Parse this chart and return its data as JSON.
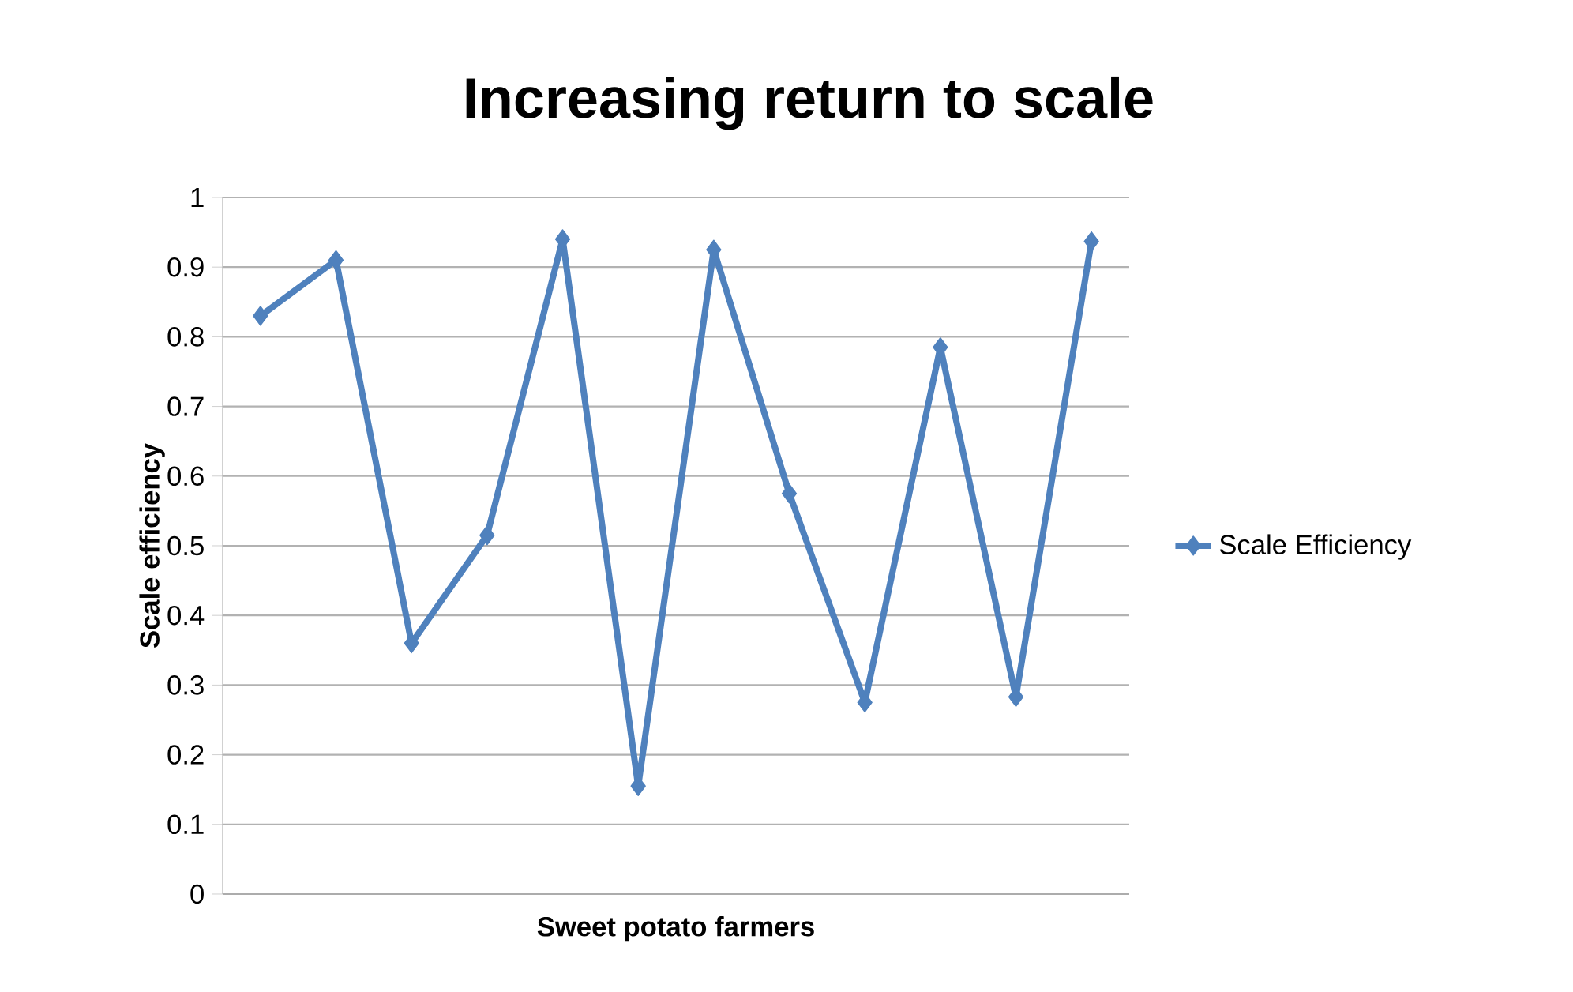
{
  "chart_data": {
    "type": "line",
    "title": "Increasing return to scale",
    "xlabel": "Sweet potato farmers",
    "ylabel": "Scale efficiency",
    "categories": [
      null,
      null,
      null,
      null,
      null,
      null,
      null,
      null,
      null,
      null,
      null,
      null
    ],
    "series": [
      {
        "name": "Scale Efficiency",
        "color": "#4f81bd",
        "values": [
          0.83,
          0.91,
          0.36,
          0.515,
          0.94,
          0.155,
          0.925,
          0.575,
          0.275,
          0.785,
          0.283,
          0.937
        ]
      }
    ],
    "ylim": [
      0,
      1
    ],
    "yticks": [
      0,
      0.1,
      0.2,
      0.3,
      0.4,
      0.5,
      0.6,
      0.7,
      0.8,
      0.9,
      1
    ],
    "grid": "y",
    "legend": "right",
    "marker": "diamond",
    "line_style": "solid"
  }
}
